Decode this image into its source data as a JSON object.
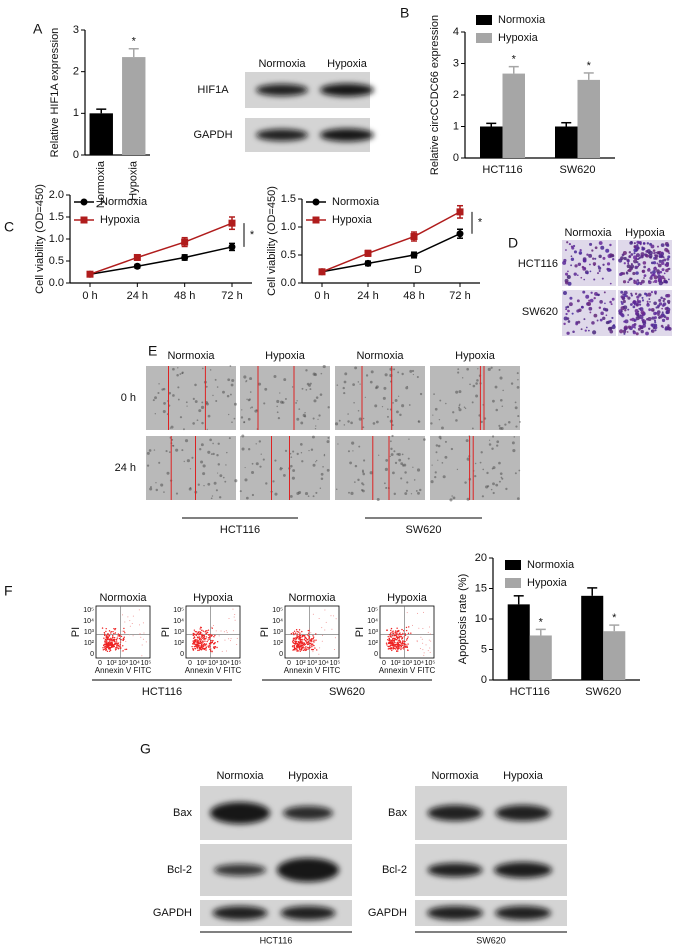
{
  "panel_labels": [
    "A",
    "B",
    "C",
    "D",
    "E",
    "F",
    "G"
  ],
  "chart_data": [
    {
      "type": "bar",
      "y_label": "Relative HIF1A expression",
      "categories": [
        "Normoxia",
        "Hypoxia"
      ],
      "values": [
        1.0,
        2.35
      ],
      "errors": [
        0.1,
        0.2
      ],
      "colors": [
        "#000000",
        "#a6a6a6"
      ],
      "ylim": [
        0,
        3
      ],
      "yticks": [
        0,
        1,
        2,
        3
      ],
      "annotation": "*"
    },
    {
      "type": "bar",
      "y_label": "Relative circCCDC66 expression",
      "categories": [
        "HCT116",
        "SW620"
      ],
      "series": [
        {
          "name": "Normoxia",
          "color": "#000000",
          "values": [
            1.0,
            1.0
          ],
          "errors": [
            0.1,
            0.12
          ]
        },
        {
          "name": "Hypoxia",
          "color": "#a6a6a6",
          "values": [
            2.68,
            2.48
          ],
          "errors": [
            0.22,
            0.22
          ]
        }
      ],
      "ylim": [
        0,
        4
      ],
      "yticks": [
        0,
        1,
        2,
        3,
        4
      ],
      "annotation": "*",
      "legend": "upper left"
    },
    {
      "type": "line",
      "y_label": "Cell viability (OD=450)",
      "categories": [
        "0 h",
        "24 h",
        "48 h",
        "72 h"
      ],
      "series": [
        {
          "name": "Normoxia",
          "color": "#000000",
          "marker": "circle",
          "values": [
            0.2,
            0.38,
            0.58,
            0.82
          ],
          "errors": [
            0.02,
            0.04,
            0.06,
            0.08
          ]
        },
        {
          "name": "Hypoxia",
          "color": "#b01c1c",
          "marker": "square",
          "values": [
            0.2,
            0.58,
            0.93,
            1.36
          ],
          "errors": [
            0.02,
            0.05,
            0.1,
            0.14
          ]
        }
      ],
      "ylim": [
        0,
        2
      ],
      "yticks": [
        {
          "value": 0,
          "label": "0.0"
        },
        0.5,
        {
          "value": 1,
          "label": "1.0"
        },
        1.5,
        {
          "value": 2,
          "label": "2.0"
        }
      ],
      "annotation": "*",
      "legend": "upper left"
    },
    {
      "type": "line",
      "y_label": "Cell viability (OD=450)",
      "categories": [
        "0 h",
        "24 h",
        "48 h",
        "72 h"
      ],
      "series": [
        {
          "name": "Normoxia",
          "color": "#000000",
          "marker": "circle",
          "values": [
            0.2,
            0.35,
            0.5,
            0.88
          ],
          "errors": [
            0.02,
            0.04,
            0.05,
            0.08
          ]
        },
        {
          "name": "Hypoxia",
          "color": "#b01c1c",
          "marker": "square",
          "values": [
            0.2,
            0.53,
            0.83,
            1.27
          ],
          "errors": [
            0.02,
            0.05,
            0.08,
            0.11
          ]
        }
      ],
      "ylim": [
        0,
        1.5
      ],
      "yticks": [
        {
          "value": 0,
          "label": "0.0"
        },
        0.5,
        {
          "value": 1,
          "label": "1.0"
        },
        1.5
      ],
      "annotation": "*",
      "note": "D",
      "legend": "upper left"
    },
    {
      "type": "bar",
      "y_label": "Apoptosis rate (%)",
      "categories": [
        "HCT116",
        "SW620"
      ],
      "series": [
        {
          "name": "Normoxia",
          "color": "#000000",
          "values": [
            12.4,
            13.8
          ],
          "errors": [
            1.4,
            1.3
          ]
        },
        {
          "name": "Hypoxia",
          "color": "#a6a6a6",
          "values": [
            7.3,
            8.0
          ],
          "errors": [
            1.0,
            1.0
          ]
        }
      ],
      "ylim": [
        0,
        20
      ],
      "yticks": [
        0,
        5,
        10,
        15,
        20
      ],
      "annotation": "*",
      "legend": "upper left"
    }
  ],
  "blot_a": {
    "lanes": [
      "Normoxia",
      "Hypoxia"
    ],
    "rows": [
      "HIF1A",
      "GAPDH"
    ]
  },
  "image_d": {
    "columns": [
      "Normoxia",
      "Hypoxia"
    ],
    "rows": [
      "HCT116",
      "SW620"
    ]
  },
  "image_e": {
    "columns": [
      "Normoxia",
      "Hypoxia",
      "Normoxia",
      "Hypoxia"
    ],
    "rows": [
      "0 h",
      "24 h"
    ],
    "groups": [
      "HCT116",
      "SW620"
    ]
  },
  "flow_f": {
    "titles": [
      "Normoxia",
      "Hypoxia",
      "Normoxia",
      "Hypoxia"
    ],
    "y_label": "PI",
    "x_label": "Annexin V FITC",
    "ticks": [
      "0",
      "10²",
      "10³",
      "10⁴",
      "10⁵"
    ],
    "groups": [
      "HCT116",
      "SW620"
    ]
  },
  "blot_g": {
    "lanes": [
      "Normoxia",
      "Hypoxia"
    ],
    "rows": [
      "Bax",
      "Bcl-2",
      "GAPDH"
    ],
    "groups": [
      "HCT116",
      "SW620"
    ]
  }
}
